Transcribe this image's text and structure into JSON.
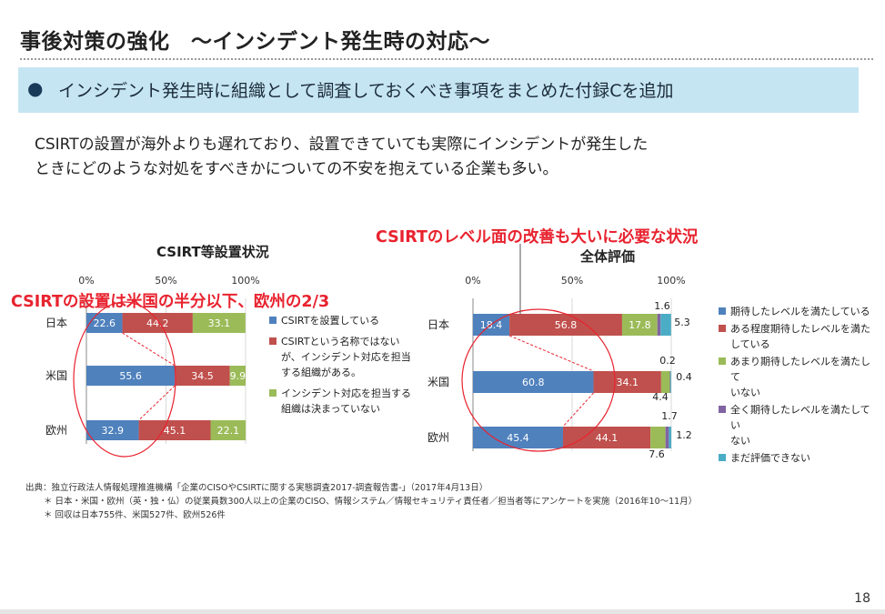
{
  "slide": {
    "title": "事後対策の強化　～インシデント発生時の対応～",
    "banner_bullet": "●",
    "banner_text": "インシデント発生時に組織として調査しておくべき事項をまとめた付録Cを追加",
    "body_line1": "CSIRTの設置が海外よりも遅れており、設置できていても実際にインシデントが発生した",
    "body_line2": "ときにどのような対処をすべきかについての不安を抱えている企業も多い。",
    "callout_left": "CSIRTの設置は米国の半分以下、欧州の2/3",
    "callout_right": "CSIRTのレベル面の改善も大いに必要な状況",
    "page_number": "18",
    "footer_line1": "出典：独立行政法人情報処理推進機構「企業のCISOやCSIRTに関する実態調査2017-調査報告書-」（2017年4月13日）",
    "footer_line2": "＊ 日本・米国・欧州（英・独・仏）の従業員数300人以上の企業のCISO、情報システム／情報セキュリティ責任者／担当者等にアンケートを実施（2016年10～11月）",
    "footer_line3": "＊ 回収は日本755件、米国527件、欧州526件"
  },
  "chart_data": [
    {
      "type": "bar",
      "orientation": "horizontal",
      "stacked": true,
      "title": "CSIRT等設置状況",
      "categories": [
        "日本",
        "米国",
        "欧州"
      ],
      "x_ticks": [
        "0%",
        "50%",
        "100%"
      ],
      "xlim": [
        0,
        100
      ],
      "series": [
        {
          "name": "CSIRTを設置している",
          "color": "#4f81bd",
          "values": [
            22.6,
            55.6,
            32.9
          ],
          "labels": [
            "22.6",
            "55.6",
            "32.9"
          ]
        },
        {
          "name": "CSIRTという名称ではないが、インシデント対応を担当する組織がある。",
          "color": "#c0504d",
          "values": [
            44.2,
            34.5,
            45.1
          ],
          "labels": [
            "44.2",
            "34.5",
            "45.1"
          ]
        },
        {
          "name": "インシデント対応を担当する組織は決まっていない",
          "color": "#9bbb59",
          "values": [
            33.1,
            9.9,
            22.1
          ],
          "labels": [
            "33.1",
            "9.9",
            "22.1"
          ]
        }
      ],
      "legend": [
        {
          "lines": [
            "CSIRTを設置している"
          ],
          "color": "#4f81bd"
        },
        {
          "lines": [
            "CSIRTという名称ではない",
            "が、インシデント対応を担当",
            "する組織がある。"
          ],
          "color": "#c0504d"
        },
        {
          "lines": [
            "インシデント対応を担当する",
            "組織は決まっていない"
          ],
          "color": "#9bbb59"
        }
      ],
      "legend_position": "right"
    },
    {
      "type": "bar",
      "orientation": "horizontal",
      "stacked": true,
      "title": "全体評価",
      "categories": [
        "日本",
        "米国",
        "欧州"
      ],
      "x_ticks": [
        "0%",
        "50%",
        "100%"
      ],
      "xlim": [
        0,
        100
      ],
      "series": [
        {
          "name": "期待したレベルを満たしている",
          "color": "#4f81bd",
          "values": [
            18.4,
            60.8,
            45.4
          ],
          "labels": [
            "18.4",
            "60.8",
            "45.4"
          ]
        },
        {
          "name": "ある程度期待したレベルを満たしている",
          "color": "#c0504d",
          "values": [
            56.8,
            34.1,
            44.1
          ],
          "labels": [
            "56.8",
            "34.1",
            "44.1"
          ]
        },
        {
          "name": "あまり期待したレベルを満たしていない",
          "color": "#9bbb59",
          "values": [
            17.8,
            4.4,
            7.6
          ],
          "labels": [
            "17.8",
            "4.4",
            "7.6"
          ]
        },
        {
          "name": "全く期待したレベルを満たしていない",
          "color": "#8064a2",
          "values": [
            1.6,
            0.2,
            1.7
          ],
          "labels": [
            "1.6",
            "0.2",
            "1.7"
          ]
        },
        {
          "name": "まだ評価できない",
          "color": "#4bacc6",
          "values": [
            5.3,
            0.4,
            1.2
          ],
          "labels": [
            "5.3",
            "0.4",
            "1.2"
          ]
        }
      ],
      "legend": [
        {
          "lines": [
            "期待したレベルを満たしている"
          ],
          "color": "#4f81bd"
        },
        {
          "lines": [
            "ある程度期待したレベルを満た",
            "している"
          ],
          "color": "#c0504d"
        },
        {
          "lines": [
            "あまり期待したレベルを満たして",
            "いない"
          ],
          "color": "#9bbb59"
        },
        {
          "lines": [
            "全く期待したレベルを満たしてい",
            "ない"
          ],
          "color": "#8064a2"
        },
        {
          "lines": [
            "まだ評価できない"
          ],
          "color": "#4bacc6"
        }
      ],
      "legend_position": "right"
    }
  ]
}
